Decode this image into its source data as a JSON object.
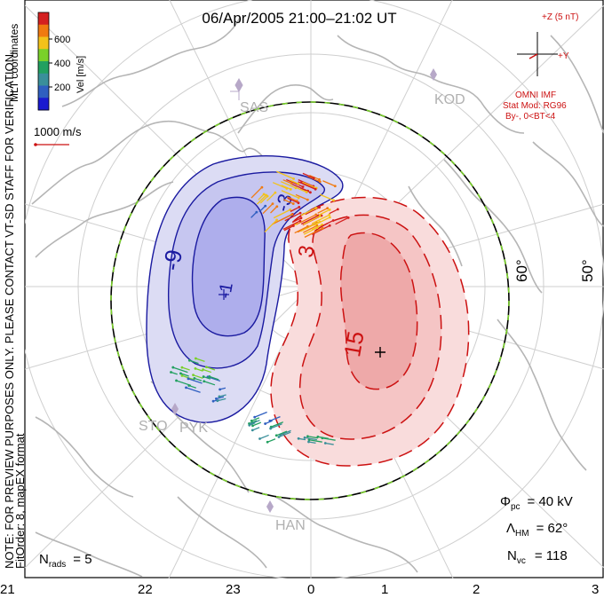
{
  "title": "06/Apr/2005 21:00–21:02 UT",
  "side_note": {
    "line1": "NOTE: FOR PREVIEW PURPOSES ONLY. PLEASE CONTACT VT-SD STAFF FOR VERIFICATION.",
    "line2": "FitOrder: 8, mapEX format"
  },
  "colorbar": {
    "labels": [
      "600",
      "400",
      "200"
    ],
    "unit_label": "Vel [m/s]",
    "coord_label": "MLT coordinates",
    "colors": [
      "#d42020",
      "#f07a10",
      "#f2c21a",
      "#7ad02a",
      "#22a060",
      "#3a8f9a",
      "#2f5fc0",
      "#1a1ad0"
    ]
  },
  "scale_vector": "1000 m/s",
  "imf": {
    "plus_z": "+Z (5 nT)",
    "plus_y": "+Y",
    "source": "OMNI IMF",
    "model": "Stat Mod: RG96",
    "condition": "By-, 0<BT<4"
  },
  "stations": [
    "SAS",
    "KOD",
    "STO",
    "PYK",
    "HAN"
  ],
  "latitude_labels": [
    "60°",
    "50°"
  ],
  "contour_labels": [
    "-9",
    "-1",
    "-3",
    "3",
    "15"
  ],
  "stats": {
    "phi_symbol": "Φ",
    "phi_sub": "pc",
    "phi_value": "= 40 kV",
    "lambda_symbol": "Λ",
    "lambda_sub": "HM",
    "lambda_value": "= 62°",
    "nvc_symbol": "N",
    "nvc_sub": "vc",
    "nvc_value": "= 118",
    "nrads_symbol": "N",
    "nrads_sub": "rads",
    "nrads_value": "= 5"
  },
  "mlt_ticks": [
    "21",
    "22",
    "23",
    "0",
    "1",
    "2",
    "3"
  ],
  "colors": {
    "negative_potential": "#1a1aa0",
    "positive_potential": "#cc1111",
    "coastline": "#b8b8b8",
    "grid": "#c8c8c8"
  }
}
